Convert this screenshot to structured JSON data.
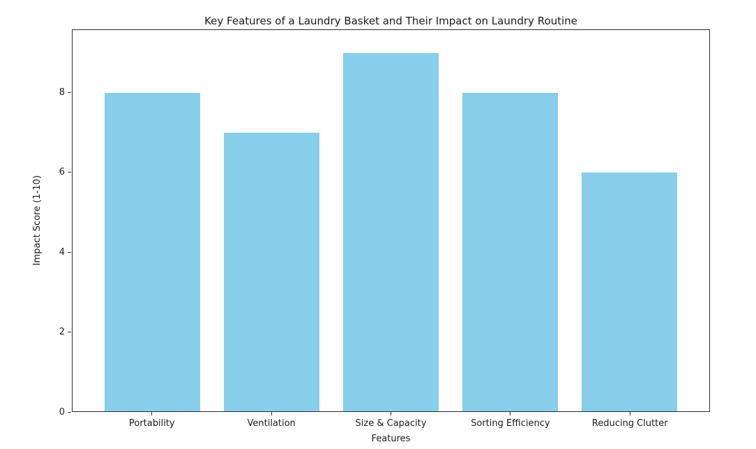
{
  "chart_data": {
    "type": "bar",
    "title": "Key Features of a Laundry Basket and Their Impact on Laundry Routine",
    "xlabel": "Features",
    "ylabel": "Impact Score (1-10)",
    "categories": [
      "Portability",
      "Ventilation",
      "Size & Capacity",
      "Sorting Efficiency",
      "Reducing Clutter"
    ],
    "values": [
      8,
      7,
      9,
      8,
      6
    ],
    "yticks": [
      0,
      2,
      4,
      6,
      8
    ],
    "ylim": [
      0,
      9.58
    ],
    "xlim": [
      -0.67,
      4.67
    ],
    "bar_width": 0.8,
    "grid": false,
    "legend": "none",
    "colors": {
      "bar": "#87CEEB",
      "background": "#FFFFFF",
      "axis": "#2B2B2B",
      "text": "#1A1A1A"
    }
  }
}
